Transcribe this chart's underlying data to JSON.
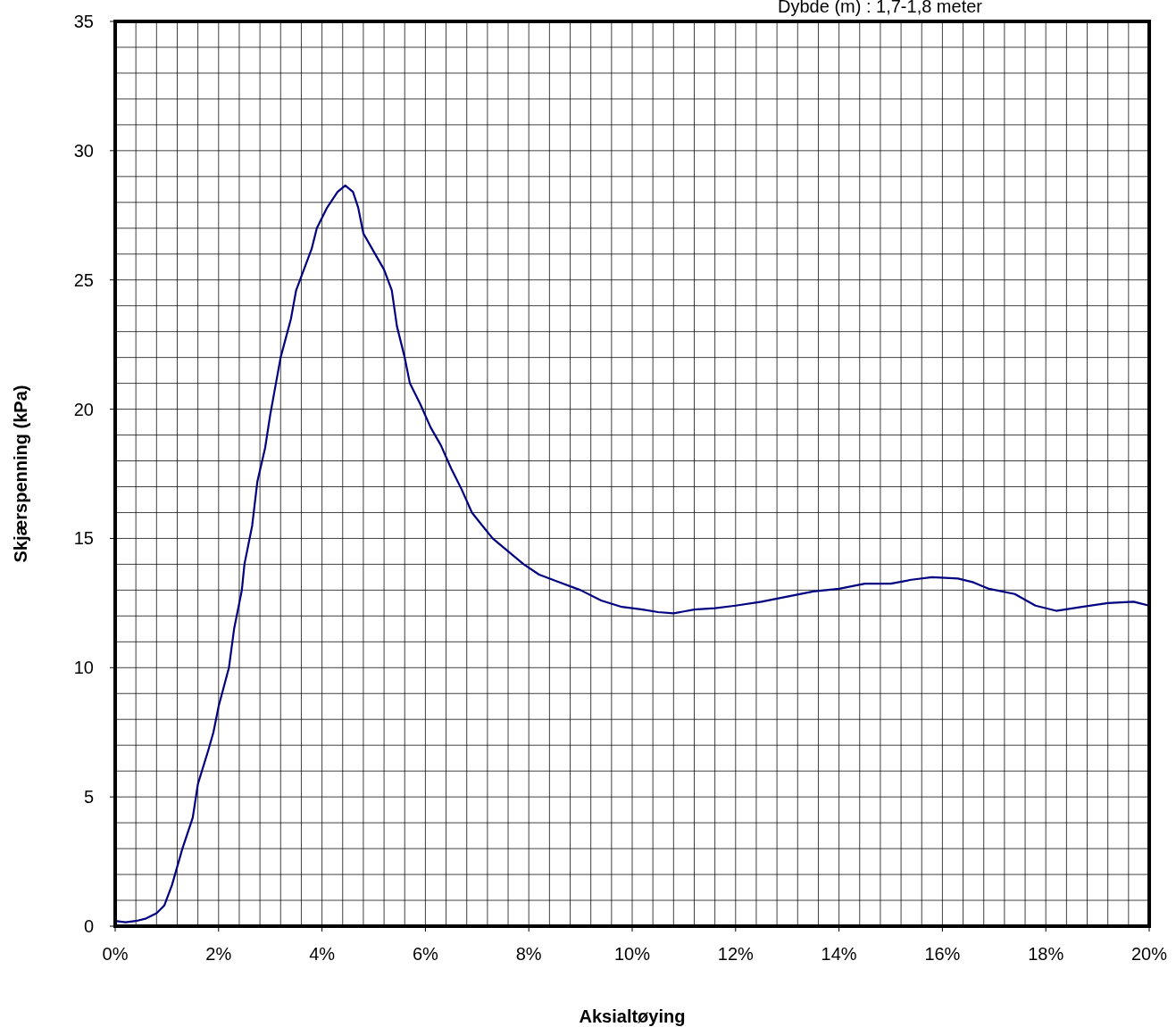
{
  "chart_data": {
    "type": "line",
    "title": "Dybde (m) : 1,7-1,8 meter",
    "xlabel": "Aksialtøying",
    "ylabel": "Skjærspenning (kPa)",
    "x": [
      0,
      0.2,
      0.4,
      0.6,
      0.8,
      0.95,
      1.1,
      1.3,
      1.5,
      1.6,
      1.8,
      1.9,
      2.0,
      2.2,
      2.3,
      2.45,
      2.5,
      2.65,
      2.75,
      2.9,
      3.0,
      3.2,
      3.4,
      3.5,
      3.8,
      3.9,
      4.1,
      4.3,
      4.45,
      4.6,
      4.7,
      4.8,
      5.0,
      5.2,
      5.35,
      5.45,
      5.6,
      5.7,
      5.9,
      6.1,
      6.3,
      6.5,
      6.7,
      6.9,
      7.1,
      7.3,
      7.6,
      7.9,
      8.2,
      8.6,
      9.0,
      9.4,
      9.8,
      10.2,
      10.5,
      10.8,
      11.2,
      11.6,
      12.0,
      12.5,
      13.0,
      13.5,
      14.0,
      14.5,
      15.0,
      15.4,
      15.8,
      16.3,
      16.6,
      16.9,
      17.4,
      17.8,
      18.2,
      18.7,
      19.2,
      19.7,
      20
    ],
    "series": [
      {
        "color": "#000080",
        "values": [
          0.2,
          0.15,
          0.2,
          0.3,
          0.5,
          0.8,
          1.6,
          3.0,
          4.2,
          5.5,
          6.8,
          7.5,
          8.5,
          10,
          11.5,
          13,
          14,
          15.5,
          17.2,
          18.5,
          19.8,
          22,
          23.5,
          24.6,
          26.2,
          27,
          27.8,
          28.4,
          28.65,
          28.4,
          27.8,
          26.8,
          26.1,
          25.4,
          24.6,
          23.2,
          22.0,
          21.0,
          20.2,
          19.3,
          18.6,
          17.7,
          16.9,
          16.0,
          15.5,
          15.0,
          14.5,
          14.0,
          13.6,
          13.3,
          13.0,
          12.6,
          12.35,
          12.25,
          12.15,
          12.1,
          12.25,
          12.3,
          12.4,
          12.55,
          12.75,
          12.95,
          13.05,
          13.25,
          13.25,
          13.4,
          13.5,
          13.45,
          13.3,
          13.05,
          12.85,
          12.4,
          12.2,
          12.35,
          12.5,
          12.55,
          12.4
        ]
      }
    ],
    "xlim": [
      0,
      20
    ],
    "xticks": [
      {
        "value": 0,
        "label": "0%"
      },
      {
        "value": 0.4,
        "label": null
      },
      {
        "value": 0.8,
        "label": null
      },
      {
        "value": 1.2,
        "label": null
      },
      {
        "value": 1.6,
        "label": null
      },
      {
        "value": 2,
        "label": "2%"
      },
      {
        "value": 2.4,
        "label": null
      },
      {
        "value": 2.8,
        "label": null
      },
      {
        "value": 3.2,
        "label": null
      },
      {
        "value": 3.6,
        "label": null
      },
      {
        "value": 4,
        "label": "4%"
      },
      {
        "value": 4.4,
        "label": null
      },
      {
        "value": 4.8,
        "label": null
      },
      {
        "value": 5.2,
        "label": null
      },
      {
        "value": 5.6,
        "label": null
      },
      {
        "value": 6,
        "label": "6%"
      },
      {
        "value": 6.4,
        "label": null
      },
      {
        "value": 6.8,
        "label": null
      },
      {
        "value": 7.2,
        "label": null
      },
      {
        "value": 7.6,
        "label": null
      },
      {
        "value": 8,
        "label": "8%"
      },
      {
        "value": 8.4,
        "label": null
      },
      {
        "value": 8.8,
        "label": null
      },
      {
        "value": 9.2,
        "label": null
      },
      {
        "value": 9.6,
        "label": null
      },
      {
        "value": 10,
        "label": "10%"
      },
      {
        "value": 10.4,
        "label": null
      },
      {
        "value": 10.8,
        "label": null
      },
      {
        "value": 11.2,
        "label": null
      },
      {
        "value": 11.6,
        "label": null
      },
      {
        "value": 12,
        "label": "12%"
      },
      {
        "value": 12.4,
        "label": null
      },
      {
        "value": 12.8,
        "label": null
      },
      {
        "value": 13.2,
        "label": null
      },
      {
        "value": 13.6,
        "label": null
      },
      {
        "value": 14,
        "label": "14%"
      },
      {
        "value": 14.4,
        "label": null
      },
      {
        "value": 14.8,
        "label": null
      },
      {
        "value": 15.2,
        "label": null
      },
      {
        "value": 15.6,
        "label": null
      },
      {
        "value": 16,
        "label": "16%"
      },
      {
        "value": 16.4,
        "label": null
      },
      {
        "value": 16.8,
        "label": null
      },
      {
        "value": 17.2,
        "label": null
      },
      {
        "value": 17.6,
        "label": null
      },
      {
        "value": 18,
        "label": "18%"
      },
      {
        "value": 18.4,
        "label": null
      },
      {
        "value": 18.8,
        "label": null
      },
      {
        "value": 19.2,
        "label": null
      },
      {
        "value": 19.6,
        "label": null
      },
      {
        "value": 20,
        "label": "20%"
      }
    ],
    "ylim": [
      0,
      35
    ],
    "yticks": [
      0,
      {
        "value": 1,
        "label": null
      },
      {
        "value": 2,
        "label": null
      },
      {
        "value": 3,
        "label": null
      },
      {
        "value": 4,
        "label": null
      },
      5,
      {
        "value": 6,
        "label": null
      },
      {
        "value": 7,
        "label": null
      },
      {
        "value": 8,
        "label": null
      },
      {
        "value": 9,
        "label": null
      },
      10,
      {
        "value": 11,
        "label": null
      },
      {
        "value": 12,
        "label": null
      },
      {
        "value": 13,
        "label": null
      },
      {
        "value": 14,
        "label": null
      },
      15,
      {
        "value": 16,
        "label": null
      },
      {
        "value": 17,
        "label": null
      },
      {
        "value": 18,
        "label": null
      },
      {
        "value": 19,
        "label": null
      },
      20,
      {
        "value": 21,
        "label": null
      },
      {
        "value": 22,
        "label": null
      },
      {
        "value": 23,
        "label": null
      },
      {
        "value": 24,
        "label": null
      },
      25,
      {
        "value": 26,
        "label": null
      },
      {
        "value": 27,
        "label": null
      },
      {
        "value": 28,
        "label": null
      },
      {
        "value": 29,
        "label": null
      },
      30,
      {
        "value": 31,
        "label": null
      },
      {
        "value": 32,
        "label": null
      },
      {
        "value": 33,
        "label": null
      },
      {
        "value": 34,
        "label": null
      },
      35
    ],
    "grid": true,
    "marker": "none",
    "line_style": "solid"
  }
}
